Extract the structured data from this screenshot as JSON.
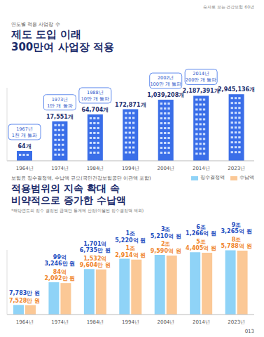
{
  "header": "숫자로 보는 건강보험 60년",
  "page_number": "013",
  "chart_data": [
    {
      "type": "bar",
      "subtitle": "연도별 적용 사업장 수",
      "title": "제도 도입 이래\n300만여 사업장 적용",
      "categories": [
        "1964년",
        "1974년",
        "1984년",
        "1994년",
        "2004년",
        "2014년",
        "2023년"
      ],
      "values": [
        64,
        17551,
        64704,
        172871,
        1039208,
        2187391,
        2945136
      ],
      "value_labels": [
        "64개",
        "17,551개",
        "64,704개",
        "172,871개",
        "1,039,208개",
        "2,187,391개",
        "2,945,136개"
      ],
      "color": "#3a6ee8",
      "log": "y",
      "ylim": [
        10,
        10000000
      ],
      "tick_labels": "x",
      "data_labels": true,
      "annotations": [
        {
          "category": "1964년",
          "text": "1967년\n1천 개 돌파"
        },
        {
          "category": "1974년",
          "text": "1973년\n1만 개 돌파"
        },
        {
          "category": "1984년",
          "text": "1988년\n10만 개 돌파"
        },
        {
          "category": "2004년",
          "text": "2002년\n100만 개 돌파"
        },
        {
          "category": "2014년",
          "text": "2014년\n200만 개 돌파"
        }
      ]
    },
    {
      "type": "bar",
      "subtitle": "보험료 징수결정액, 수납액 규모(국민건강보험공단 이관액 포함)",
      "title": "적용범위의 지속 확대 속\n비약적으로 증가한 수납액",
      "note": "*해당연도의 징수 결정된 금액만 통계에 산정(이월된 징수결정액 제외)",
      "categories": [
        "1964년",
        "1974년",
        "1984년",
        "1994년",
        "2004년",
        "2014년",
        "2023년"
      ],
      "series": [
        {
          "name": "징수결정액",
          "color": "#8fd3f7",
          "values": [
            77830000,
            9932460000,
            170167350000,
            1522000000000,
            3521000000000,
            6126600000000,
            9326500000000
          ],
          "value_labels": [
            "7,783만 원",
            "99억 3,246만 원",
            "1,701억 6,735만 원",
            "1조 5,220억 원",
            "3조 5,210억 원",
            "6조 1,266억 원",
            "9조 3,265억 원"
          ]
        },
        {
          "name": "수납액",
          "color": "#fbc896",
          "values": [
            75280000,
            8420920000,
            153296040000,
            1291400000000,
            2959000000000,
            5440500000000,
            8578800000000
          ],
          "value_labels": [
            "7,528만 원",
            "84억 2,092만 원",
            "1,532억 9,604만 원",
            "1조 2,914억 원",
            "2조 9,590억 원",
            "5조 4,405억 원",
            "8조 5,788억 원"
          ]
        }
      ],
      "legend": "top-right",
      "log": "y",
      "ylim": [
        10000000,
        10000000000000
      ],
      "tick_labels": "x",
      "data_labels": true
    }
  ]
}
